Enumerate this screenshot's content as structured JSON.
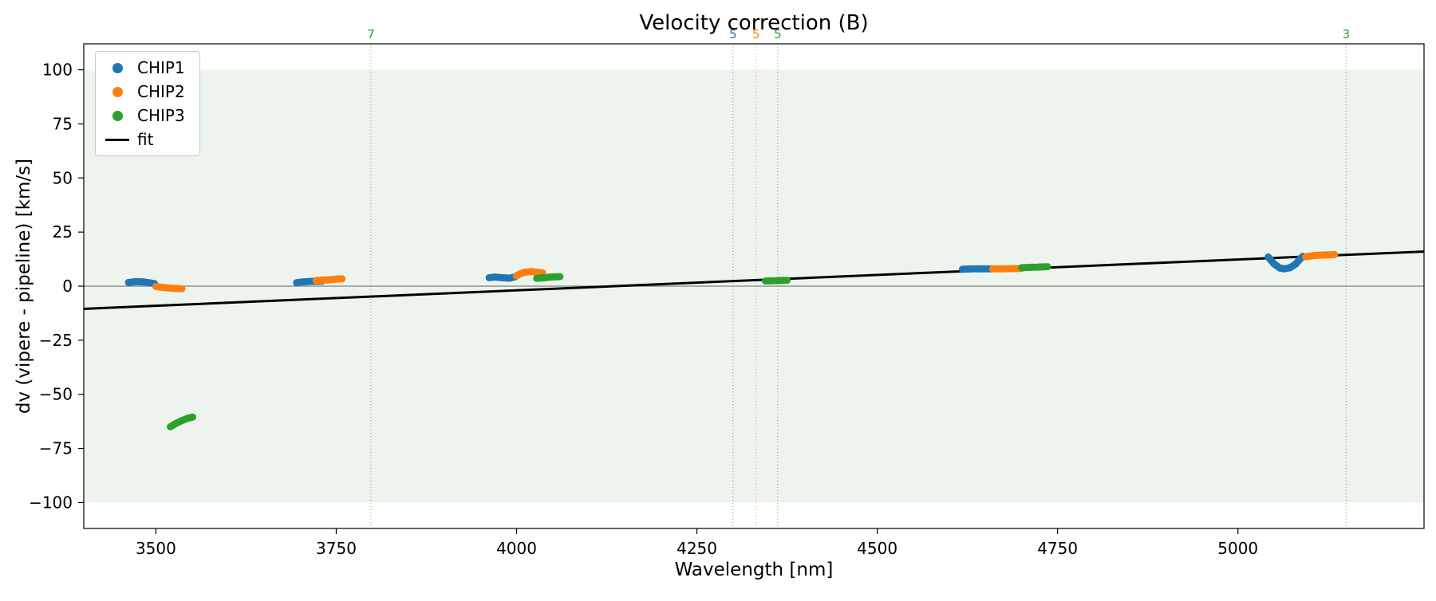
{
  "figure": {
    "title": "Velocity correction (B)",
    "xlabel": "Wavelength [nm]",
    "ylabel": "dv (vipere - pipeline) [km/s]"
  },
  "legend": {
    "items": [
      {
        "label": "CHIP1",
        "color": "#1f77b4",
        "marker": "dot"
      },
      {
        "label": "CHIP2",
        "color": "#ff7f0e",
        "marker": "dot"
      },
      {
        "label": "CHIP3",
        "color": "#2ca02c",
        "marker": "dot"
      },
      {
        "label": "fit",
        "color": "#000000",
        "marker": "line"
      }
    ]
  },
  "chart_data": {
    "type": "scatter",
    "title": "Velocity correction (B)",
    "xlabel": "Wavelength [nm]",
    "ylabel": "dv (vipere - pipeline) [km/s]",
    "xlim": [
      3400,
      5258
    ],
    "ylim": [
      -112,
      112
    ],
    "xticks": [
      3500,
      3750,
      4000,
      4250,
      4500,
      4750,
      5000
    ],
    "yticks": [
      100,
      75,
      50,
      25,
      0,
      -25,
      -50,
      -75,
      -100
    ],
    "grid": false,
    "legend_position": "upper left",
    "shaded_band": {
      "ymin": -100,
      "ymax": 100,
      "color": "#edf4ed"
    },
    "zero_line": {
      "y": 0,
      "color": "#808080"
    },
    "fit_line": {
      "x": [
        3400,
        5258
      ],
      "y": [
        -10.5,
        16.0
      ],
      "color": "#000000"
    },
    "vlines": [
      {
        "x": 3798,
        "label": "7",
        "color": "#2ca02c"
      },
      {
        "x": 4300,
        "label": "5",
        "color": "#1f77b4"
      },
      {
        "x": 4332,
        "label": "5",
        "color": "#ff7f0e"
      },
      {
        "x": 4362,
        "label": "5",
        "color": "#2ca02c"
      },
      {
        "x": 5150,
        "label": "3",
        "color": "#2ca02c"
      }
    ],
    "series": [
      {
        "name": "CHIP1",
        "color": "#1f77b4",
        "clusters": [
          [
            [
              3462,
              1.7
            ],
            [
              3472,
              2.1
            ],
            [
              3482,
              2.0
            ],
            [
              3492,
              1.5
            ],
            [
              3498,
              1.2
            ]
          ],
          [
            [
              3695,
              1.6
            ],
            [
              3705,
              2.0
            ],
            [
              3715,
              2.2
            ],
            [
              3725,
              2.3
            ],
            [
              3731,
              2.4
            ]
          ],
          [
            [
              3962,
              3.9
            ],
            [
              3970,
              4.2
            ],
            [
              3980,
              3.9
            ],
            [
              3990,
              3.7
            ],
            [
              3998,
              4.3
            ]
          ],
          [
            [
              4618,
              7.8
            ],
            [
              4630,
              8.0
            ],
            [
              4645,
              8.0
            ],
            [
              4658,
              8.0
            ]
          ],
          [
            [
              5042,
              13.5
            ],
            [
              5050,
              10.3
            ],
            [
              5058,
              8.4
            ],
            [
              5064,
              8.0
            ],
            [
              5072,
              8.5
            ],
            [
              5080,
              10.2
            ],
            [
              5086,
              12.5
            ],
            [
              5090,
              13.8
            ]
          ]
        ]
      },
      {
        "name": "CHIP2",
        "color": "#ff7f0e",
        "clusters": [
          [
            [
              3500,
              -0.2
            ],
            [
              3510,
              -0.6
            ],
            [
              3520,
              -0.9
            ],
            [
              3530,
              -1.1
            ],
            [
              3536,
              -1.2
            ]
          ],
          [
            [
              3722,
              2.6
            ],
            [
              3732,
              2.8
            ],
            [
              3742,
              3.0
            ],
            [
              3752,
              3.3
            ],
            [
              3758,
              3.4
            ]
          ],
          [
            [
              4000,
              4.8
            ],
            [
              4006,
              5.9
            ],
            [
              4012,
              6.5
            ],
            [
              4020,
              6.7
            ],
            [
              4028,
              6.5
            ],
            [
              4036,
              6.2
            ]
          ],
          [
            [
              4660,
              8.0
            ],
            [
              4672,
              8.0
            ],
            [
              4686,
              8.1
            ],
            [
              4700,
              8.2
            ]
          ],
          [
            [
              5094,
              13.6
            ],
            [
              5106,
              14.2
            ],
            [
              5120,
              14.4
            ],
            [
              5134,
              14.6
            ]
          ]
        ]
      },
      {
        "name": "CHIP3",
        "color": "#2ca02c",
        "clusters": [
          [
            [
              3520,
              -65.0
            ],
            [
              3528,
              -63.4
            ],
            [
              3536,
              -62.1
            ],
            [
              3544,
              -61.1
            ],
            [
              3551,
              -60.5
            ]
          ],
          [
            [
              4028,
              3.6
            ],
            [
              4038,
              3.9
            ],
            [
              4048,
              4.2
            ],
            [
              4060,
              4.4
            ]
          ],
          [
            [
              4345,
              2.4
            ],
            [
              4355,
              2.5
            ],
            [
              4365,
              2.6
            ],
            [
              4375,
              2.7
            ]
          ],
          [
            [
              4700,
              8.5
            ],
            [
              4712,
              8.7
            ],
            [
              4724,
              8.8
            ],
            [
              4736,
              9.0
            ]
          ]
        ]
      }
    ]
  }
}
